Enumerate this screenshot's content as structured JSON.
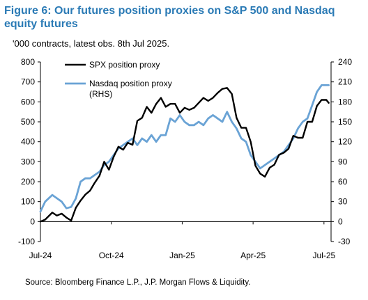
{
  "chart_data": {
    "type": "line",
    "title": "Figure 6: Our futures position proxies on S&P 500 and Nasdaq equity futures",
    "subtitle": "'000 contracts, latest obs. 8th Jul 2025.",
    "source": "Source: Bloomberg Finance L.P., J.P. Morgan Flows & Liquidity.",
    "x_tick_labels": [
      "Jul-24",
      "Oct-24",
      "Jan-25",
      "Apr-25",
      "Jul-25"
    ],
    "x_ticks_months": [
      0,
      3,
      6,
      9,
      12
    ],
    "x_range_months": [
      0,
      12.3
    ],
    "y_left": {
      "range": [
        -100,
        800
      ],
      "ticks": [
        -100,
        0,
        100,
        200,
        300,
        400,
        500,
        600,
        700,
        800
      ]
    },
    "y_right": {
      "range": [
        -30,
        240
      ],
      "ticks": [
        -30,
        0,
        30,
        60,
        90,
        120,
        150,
        180,
        210,
        240
      ]
    },
    "legend": [
      {
        "series": "spx",
        "label_lines": [
          "SPX position proxy"
        ]
      },
      {
        "series": "nasdaq",
        "label_lines": [
          "Nasdaq position proxy",
          "(RHS)"
        ]
      }
    ],
    "series": [
      {
        "id": "spx",
        "name": "SPX position proxy",
        "axis": "left",
        "color": "#000000",
        "x_months": [
          0,
          0.2,
          0.5,
          0.7,
          0.9,
          1.1,
          1.3,
          1.5,
          1.7,
          1.9,
          2.1,
          2.3,
          2.5,
          2.7,
          2.9,
          3.1,
          3.3,
          3.5,
          3.7,
          3.9,
          4.1,
          4.3,
          4.5,
          4.7,
          4.9,
          5.1,
          5.3,
          5.5,
          5.7,
          5.9,
          6.1,
          6.3,
          6.5,
          6.7,
          6.9,
          7.1,
          7.3,
          7.5,
          7.7,
          7.9,
          8.1,
          8.3,
          8.5,
          8.7,
          8.9,
          9.1,
          9.3,
          9.5,
          9.7,
          9.9,
          10.1,
          10.3,
          10.5,
          10.7,
          10.9,
          11.1,
          11.3,
          11.5,
          11.7,
          11.9,
          12.1,
          12.2
        ],
        "values": [
          0,
          10,
          45,
          30,
          40,
          20,
          5,
          70,
          105,
          135,
          155,
          195,
          230,
          300,
          260,
          325,
          375,
          360,
          395,
          385,
          505,
          520,
          575,
          545,
          590,
          620,
          575,
          590,
          590,
          545,
          570,
          560,
          570,
          595,
          620,
          605,
          620,
          645,
          665,
          670,
          640,
          520,
          470,
          470,
          400,
          280,
          240,
          225,
          270,
          285,
          335,
          345,
          365,
          430,
          420,
          420,
          500,
          500,
          580,
          610,
          610,
          595
        ]
      },
      {
        "id": "nasdaq",
        "name": "Nasdaq position proxy (RHS)",
        "axis": "right",
        "color": "#6aa3d5",
        "x_months": [
          0,
          0.2,
          0.5,
          0.7,
          0.9,
          1.1,
          1.3,
          1.5,
          1.7,
          1.9,
          2.1,
          2.3,
          2.5,
          2.7,
          2.9,
          3.1,
          3.3,
          3.5,
          3.7,
          3.9,
          4.1,
          4.3,
          4.5,
          4.7,
          4.9,
          5.1,
          5.3,
          5.5,
          5.7,
          5.9,
          6.1,
          6.3,
          6.5,
          6.7,
          6.9,
          7.1,
          7.3,
          7.5,
          7.7,
          7.9,
          8.1,
          8.3,
          8.5,
          8.7,
          8.9,
          9.1,
          9.3,
          9.5,
          9.7,
          9.9,
          10.1,
          10.3,
          10.5,
          10.7,
          10.9,
          11.1,
          11.3,
          11.5,
          11.7,
          11.9,
          12.1,
          12.2
        ],
        "values": [
          15,
          30,
          40,
          35,
          30,
          20,
          22,
          35,
          60,
          65,
          65,
          70,
          75,
          85,
          90,
          100,
          110,
          115,
          120,
          125,
          115,
          125,
          120,
          130,
          120,
          130,
          130,
          155,
          150,
          160,
          150,
          145,
          145,
          150,
          145,
          155,
          160,
          155,
          150,
          165,
          150,
          140,
          125,
          120,
          100,
          90,
          80,
          85,
          90,
          95,
          100,
          105,
          115,
          125,
          140,
          150,
          155,
          175,
          195,
          205,
          205,
          205
        ]
      }
    ]
  }
}
